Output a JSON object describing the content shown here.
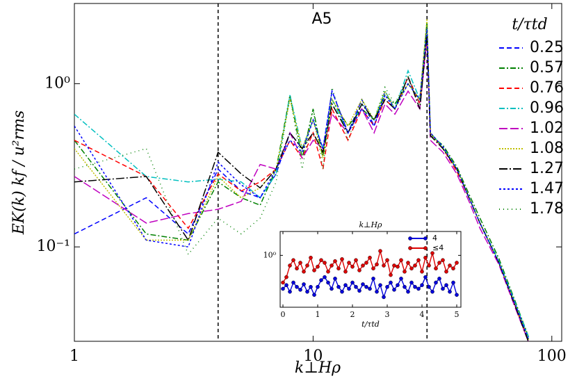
{
  "chart_data": [
    {
      "type": "line",
      "title": "A5",
      "x_label": "k⊥Hρ",
      "y_label": "EK(k) kf / u²rms",
      "legend_title": "t/τtd",
      "log_x": true,
      "log_y": true,
      "legend": "upper right",
      "x": [
        1,
        2,
        3,
        4,
        5,
        6,
        7,
        8,
        9,
        10,
        11,
        12,
        14,
        16,
        18,
        20,
        22,
        25,
        28,
        30,
        31,
        35,
        40,
        45,
        50,
        60,
        70,
        80
      ],
      "xlim": [
        1,
        110
      ],
      "ylim": [
        0.0264,
        3.1
      ],
      "xticks": [
        1,
        10,
        100
      ],
      "yticks": [
        {
          "value": 1,
          "label": "10⁰"
        },
        {
          "value": 0.1,
          "label": "10⁻¹"
        }
      ],
      "vlines": [
        4,
        30
      ],
      "series": [
        {
          "name": "0.25",
          "color": "#0000ff",
          "dash": "7 4",
          "values": [
            0.12,
            0.2,
            0.12,
            0.3,
            0.22,
            0.2,
            0.28,
            0.5,
            0.4,
            0.6,
            0.4,
            0.9,
            0.5,
            0.8,
            0.55,
            0.9,
            0.7,
            1.1,
            0.75,
            2.1,
            0.5,
            0.4,
            0.3,
            0.2,
            0.14,
            0.08,
            0.045,
            0.027
          ]
        },
        {
          "name": "0.57",
          "color": "#008000",
          "dash": "8 3 2 3",
          "values": [
            0.45,
            0.12,
            0.11,
            0.25,
            0.2,
            0.18,
            0.3,
            0.85,
            0.35,
            0.7,
            0.35,
            0.8,
            0.55,
            0.7,
            0.6,
            0.85,
            0.75,
            1.0,
            0.8,
            2.4,
            0.48,
            0.42,
            0.31,
            0.21,
            0.15,
            0.085,
            0.047,
            0.028
          ]
        },
        {
          "name": "0.76",
          "color": "#ff0000",
          "dash": "7 4",
          "values": [
            0.45,
            0.27,
            0.13,
            0.28,
            0.22,
            0.25,
            0.3,
            0.45,
            0.35,
            0.5,
            0.3,
            0.7,
            0.45,
            0.7,
            0.55,
            0.8,
            0.7,
            1.1,
            0.75,
            2.0,
            0.5,
            0.4,
            0.29,
            0.2,
            0.14,
            0.08,
            0.044,
            0.026
          ]
        },
        {
          "name": "0.96",
          "color": "#00bfbf",
          "dash": "8 3 2 3",
          "values": [
            0.65,
            0.27,
            0.25,
            0.26,
            0.25,
            0.2,
            0.28,
            0.85,
            0.4,
            0.6,
            0.4,
            0.8,
            0.5,
            0.75,
            0.6,
            0.9,
            0.7,
            1.2,
            0.8,
            2.2,
            0.5,
            0.41,
            0.3,
            0.2,
            0.14,
            0.082,
            0.046,
            0.028
          ]
        },
        {
          "name": "1.02",
          "color": "#bf00bf",
          "dash": "12 4",
          "values": [
            0.27,
            0.14,
            0.16,
            0.17,
            0.19,
            0.32,
            0.3,
            0.5,
            0.35,
            0.45,
            0.4,
            0.65,
            0.5,
            0.7,
            0.5,
            0.75,
            0.65,
            0.9,
            0.7,
            1.9,
            0.45,
            0.38,
            0.28,
            0.19,
            0.13,
            0.078,
            0.043,
            0.026
          ]
        },
        {
          "name": "1.08",
          "color": "#bfbf00",
          "dash": "2 2",
          "values": [
            0.4,
            0.11,
            0.11,
            0.27,
            0.2,
            0.23,
            0.3,
            0.8,
            0.4,
            0.6,
            0.35,
            0.8,
            0.55,
            0.8,
            0.6,
            0.9,
            0.7,
            1.0,
            0.8,
            2.5,
            0.5,
            0.4,
            0.3,
            0.2,
            0.14,
            0.08,
            0.045,
            0.027
          ]
        },
        {
          "name": "1.27",
          "color": "#000000",
          "dash": "12 3 2 3",
          "values": [
            0.25,
            0.27,
            0.11,
            0.38,
            0.28,
            0.23,
            0.3,
            0.5,
            0.4,
            0.5,
            0.38,
            0.75,
            0.5,
            0.75,
            0.6,
            0.8,
            0.7,
            1.1,
            0.7,
            2.0,
            0.48,
            0.4,
            0.3,
            0.2,
            0.14,
            0.08,
            0.044,
            0.026
          ]
        },
        {
          "name": "1.47",
          "color": "#0000ff",
          "dash": "3 3",
          "values": [
            0.55,
            0.11,
            0.1,
            0.33,
            0.24,
            0.2,
            0.3,
            0.45,
            0.38,
            0.6,
            0.4,
            0.9,
            0.5,
            0.7,
            0.55,
            0.85,
            0.7,
            1.0,
            0.8,
            2.2,
            0.5,
            0.41,
            0.3,
            0.2,
            0.14,
            0.08,
            0.045,
            0.027
          ]
        },
        {
          "name": "1.78",
          "color": "#008000",
          "dash": "1 5",
          "values": [
            0.3,
            0.4,
            0.09,
            0.15,
            0.12,
            0.15,
            0.25,
            0.85,
            0.3,
            0.7,
            0.3,
            0.95,
            0.45,
            0.8,
            0.6,
            0.95,
            0.75,
            1.1,
            0.75,
            2.3,
            0.5,
            0.4,
            0.3,
            0.2,
            0.14,
            0.08,
            0.045,
            0.027
          ]
        }
      ]
    },
    {
      "type": "line",
      "title": "k⊥Hρ",
      "x_label": "t/τtd",
      "log_y": true,
      "legend": "upper right",
      "x": [
        0,
        0.1,
        0.2,
        0.3,
        0.4,
        0.5,
        0.6,
        0.7,
        0.8,
        0.9,
        1,
        1.1,
        1.2,
        1.3,
        1.4,
        1.5,
        1.6,
        1.7,
        1.8,
        1.9,
        2,
        2.1,
        2.2,
        2.3,
        2.4,
        2.5,
        2.6,
        2.7,
        2.8,
        2.9,
        3,
        3.1,
        3.2,
        3.3,
        3.4,
        3.5,
        3.6,
        3.7,
        3.8,
        3.9,
        4,
        4.1,
        4.2,
        4.3,
        4.4,
        4.5,
        4.6,
        4.7,
        4.8,
        4.9,
        5
      ],
      "xlim": [
        -0.08,
        5.12
      ],
      "ylim": [
        0.32,
        1.69
      ],
      "xticks": [
        0,
        1,
        2,
        3,
        4,
        5
      ],
      "yticks": [
        {
          "value": 1,
          "label": "10⁰"
        }
      ],
      "series": [
        {
          "name": "4",
          "color": "#0000dd",
          "values": [
            0.48,
            0.52,
            0.45,
            0.55,
            0.5,
            0.47,
            0.53,
            0.45,
            0.5,
            0.42,
            0.5,
            0.58,
            0.62,
            0.55,
            0.48,
            0.6,
            0.5,
            0.45,
            0.52,
            0.48,
            0.55,
            0.5,
            0.46,
            0.53,
            0.5,
            0.48,
            0.6,
            0.45,
            0.52,
            0.4,
            0.5,
            0.55,
            0.47,
            0.52,
            0.6,
            0.5,
            0.45,
            0.55,
            0.5,
            0.48,
            0.52,
            0.62,
            0.5,
            0.45,
            0.55,
            0.6,
            0.48,
            0.52,
            0.45,
            0.55,
            0.42
          ]
        },
        {
          "name": "≤4",
          "color": "#dd0000",
          "values": [
            0.55,
            0.62,
            0.8,
            0.9,
            0.75,
            0.85,
            0.7,
            0.8,
            0.95,
            0.72,
            0.78,
            0.9,
            0.85,
            0.7,
            0.8,
            0.88,
            0.75,
            0.92,
            0.7,
            0.85,
            0.78,
            0.9,
            0.72,
            0.8,
            0.85,
            0.95,
            0.75,
            0.82,
            1.1,
            0.8,
            0.9,
            0.65,
            0.8,
            0.78,
            0.9,
            0.7,
            0.85,
            0.75,
            0.8,
            0.9,
            0.7,
            0.95,
            0.8,
            1.05,
            0.75,
            0.85,
            0.9,
            0.7,
            0.8,
            0.75,
            0.85
          ]
        }
      ]
    }
  ]
}
